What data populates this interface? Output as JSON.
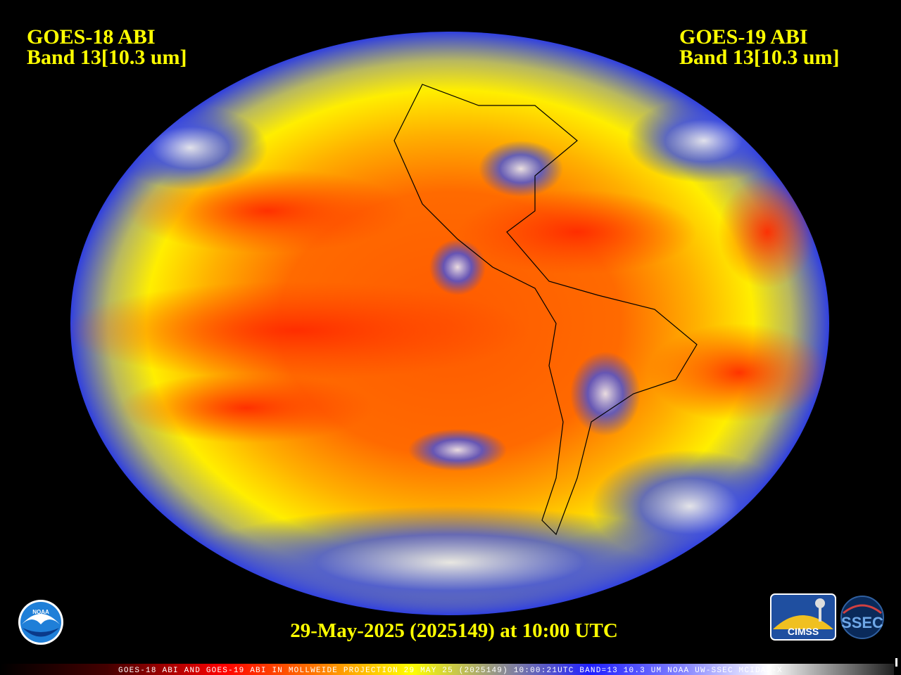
{
  "left_label": {
    "satellite": "GOES-18 ABI",
    "band": "Band 13[10.3 um]"
  },
  "right_label": {
    "satellite": "GOES-19 ABI",
    "band": "Band 13[10.3 um]"
  },
  "timestamp": "29-May-2025 (2025149) at 10:00 UTC",
  "footer": "GOES-18 ABI AND GOES-19 ABI IN MOLLWEIDE PROJECTION 29 MAY 25 (2025149) 10:00:21UTC BAND=13 10.3 UM NOAA UW-SSEC MCIDAS-X",
  "logos": {
    "noaa": "NOAA",
    "cimss": "CIMSS",
    "ssec": "SSEC"
  }
}
